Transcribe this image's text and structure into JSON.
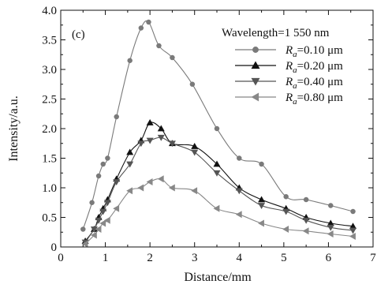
{
  "chart_data": {
    "type": "line",
    "panel_label": "(c)",
    "xlabel": "Distance/mm",
    "ylabel": "Intensity/a.u.",
    "xlim": [
      0,
      7
    ],
    "ylim": [
      0,
      4.0
    ],
    "xticks": [
      0,
      1,
      2,
      3,
      4,
      5,
      6,
      7
    ],
    "xtick_labels": [
      "0",
      "1",
      "2",
      "3",
      "4",
      "5",
      "6",
      "7"
    ],
    "yticks": [
      0,
      0.5,
      1.0,
      1.5,
      2.0,
      2.5,
      3.0,
      3.5,
      4.0
    ],
    "ytick_labels": [
      "0",
      "0.5",
      "1.0",
      "1.5",
      "2.0",
      "2.5",
      "3.0",
      "3.5",
      "4.0"
    ],
    "grid": false,
    "legend_title": "Wavelength=1 550 nm",
    "legend_position": "top-right",
    "series": [
      {
        "name_italic": "R",
        "name_sub": "a",
        "name_rest": "=0.10 μm",
        "marker": "circle",
        "color": "#7a7a7a",
        "points": [
          [
            0.5,
            0.3
          ],
          [
            0.7,
            0.75
          ],
          [
            0.85,
            1.2
          ],
          [
            0.95,
            1.4
          ],
          [
            1.05,
            1.5
          ],
          [
            1.25,
            2.2
          ],
          [
            1.55,
            3.15
          ],
          [
            1.8,
            3.7
          ],
          [
            1.97,
            3.8
          ],
          [
            2.2,
            3.4
          ],
          [
            2.5,
            3.2
          ],
          [
            2.95,
            2.75
          ],
          [
            3.5,
            2.0
          ],
          [
            4.0,
            1.5
          ],
          [
            4.5,
            1.4
          ],
          [
            5.05,
            0.85
          ],
          [
            5.5,
            0.8
          ],
          [
            6.05,
            0.7
          ],
          [
            6.55,
            0.6
          ]
        ]
      },
      {
        "name_italic": "R",
        "name_sub": "a",
        "name_rest": "=0.20 μm",
        "marker": "triangle-up",
        "color": "#111111",
        "points": [
          [
            0.55,
            0.1
          ],
          [
            0.75,
            0.3
          ],
          [
            0.85,
            0.5
          ],
          [
            0.95,
            0.65
          ],
          [
            1.05,
            0.8
          ],
          [
            1.25,
            1.15
          ],
          [
            1.55,
            1.6
          ],
          [
            1.8,
            1.8
          ],
          [
            2.0,
            2.1
          ],
          [
            2.25,
            2.0
          ],
          [
            2.5,
            1.75
          ],
          [
            3.0,
            1.7
          ],
          [
            3.5,
            1.4
          ],
          [
            4.0,
            1.0
          ],
          [
            4.5,
            0.8
          ],
          [
            5.05,
            0.65
          ],
          [
            5.5,
            0.5
          ],
          [
            6.05,
            0.4
          ],
          [
            6.55,
            0.35
          ]
        ]
      },
      {
        "name_italic": "R",
        "name_sub": "a",
        "name_rest": "=0.40 μm",
        "marker": "triangle-down",
        "color": "#555555",
        "points": [
          [
            0.55,
            0.08
          ],
          [
            0.75,
            0.3
          ],
          [
            0.85,
            0.45
          ],
          [
            0.95,
            0.6
          ],
          [
            1.05,
            0.75
          ],
          [
            1.25,
            1.1
          ],
          [
            1.55,
            1.4
          ],
          [
            1.8,
            1.75
          ],
          [
            2.0,
            1.8
          ],
          [
            2.25,
            1.85
          ],
          [
            2.5,
            1.75
          ],
          [
            3.0,
            1.6
          ],
          [
            3.5,
            1.25
          ],
          [
            4.0,
            0.95
          ],
          [
            4.5,
            0.7
          ],
          [
            5.05,
            0.6
          ],
          [
            5.5,
            0.45
          ],
          [
            6.05,
            0.33
          ],
          [
            6.55,
            0.28
          ]
        ]
      },
      {
        "name_italic": "R",
        "name_sub": "a",
        "name_rest": "=0.80 μm",
        "marker": "triangle-left",
        "color": "#888888",
        "points": [
          [
            0.55,
            0.05
          ],
          [
            0.75,
            0.2
          ],
          [
            0.85,
            0.3
          ],
          [
            0.95,
            0.4
          ],
          [
            1.05,
            0.45
          ],
          [
            1.25,
            0.65
          ],
          [
            1.55,
            0.95
          ],
          [
            1.8,
            1.0
          ],
          [
            2.0,
            1.1
          ],
          [
            2.25,
            1.15
          ],
          [
            2.5,
            1.0
          ],
          [
            3.0,
            0.95
          ],
          [
            3.5,
            0.65
          ],
          [
            4.0,
            0.55
          ],
          [
            4.5,
            0.4
          ],
          [
            5.05,
            0.3
          ],
          [
            5.5,
            0.27
          ],
          [
            6.05,
            0.22
          ],
          [
            6.55,
            0.18
          ]
        ]
      }
    ]
  }
}
